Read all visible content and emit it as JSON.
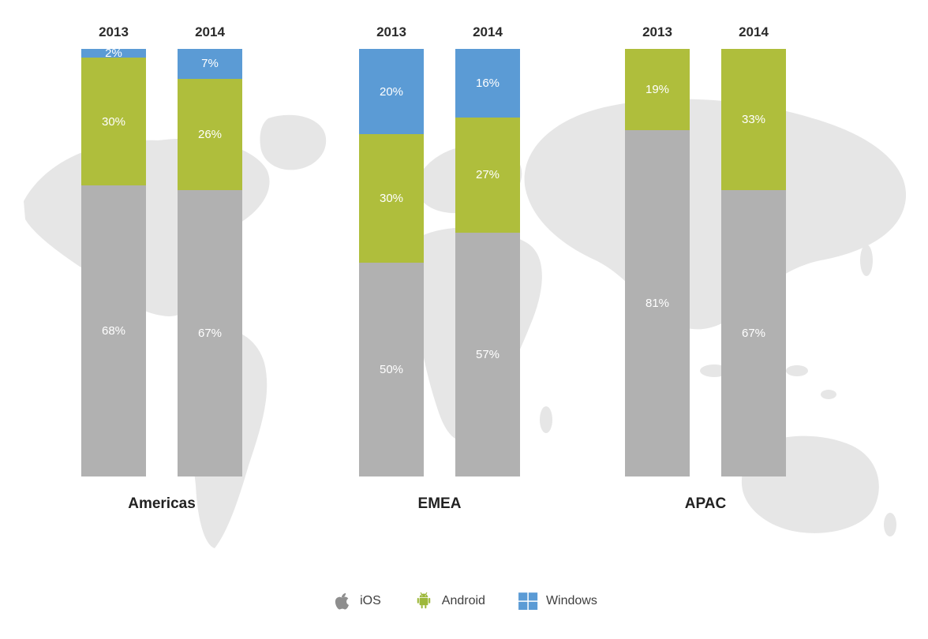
{
  "chart_data": {
    "type": "bar",
    "stacked": true,
    "percent_scale": true,
    "ylim": [
      0,
      100
    ],
    "label_format": "{value}%",
    "regions": [
      {
        "label": "Americas",
        "bars": [
          {
            "year": "2013",
            "values": {
              "iOS": 68,
              "Android": 30,
              "Windows": 2
            }
          },
          {
            "year": "2014",
            "values": {
              "iOS": 67,
              "Android": 26,
              "Windows": 7
            }
          }
        ]
      },
      {
        "label": "EMEA",
        "bars": [
          {
            "year": "2013",
            "values": {
              "iOS": 50,
              "Android": 30,
              "Windows": 20
            }
          },
          {
            "year": "2014",
            "values": {
              "iOS": 57,
              "Android": 27,
              "Windows": 16
            }
          }
        ]
      },
      {
        "label": "APAC",
        "bars": [
          {
            "year": "2013",
            "values": {
              "iOS": 81,
              "Android": 19,
              "Windows": 0
            }
          },
          {
            "year": "2014",
            "values": {
              "iOS": 67,
              "Android": 33,
              "Windows": 0
            }
          }
        ]
      }
    ],
    "series_order_top_to_bottom": [
      "Windows",
      "Android",
      "iOS"
    ],
    "colors": {
      "iOS": "#b1b1b1",
      "Android": "#afbe3c",
      "Windows": "#5b9bd5"
    },
    "legend": [
      {
        "label": "iOS",
        "icon": "apple-icon",
        "color": "#8e8e8e"
      },
      {
        "label": "Android",
        "icon": "android-icon",
        "color": "#9db83a"
      },
      {
        "label": "Windows",
        "icon": "windows-icon",
        "color": "#5b9bd5"
      }
    ],
    "legend_position": "bottom",
    "background": "world-map-silhouette",
    "map_color": "#e6e6e6"
  }
}
